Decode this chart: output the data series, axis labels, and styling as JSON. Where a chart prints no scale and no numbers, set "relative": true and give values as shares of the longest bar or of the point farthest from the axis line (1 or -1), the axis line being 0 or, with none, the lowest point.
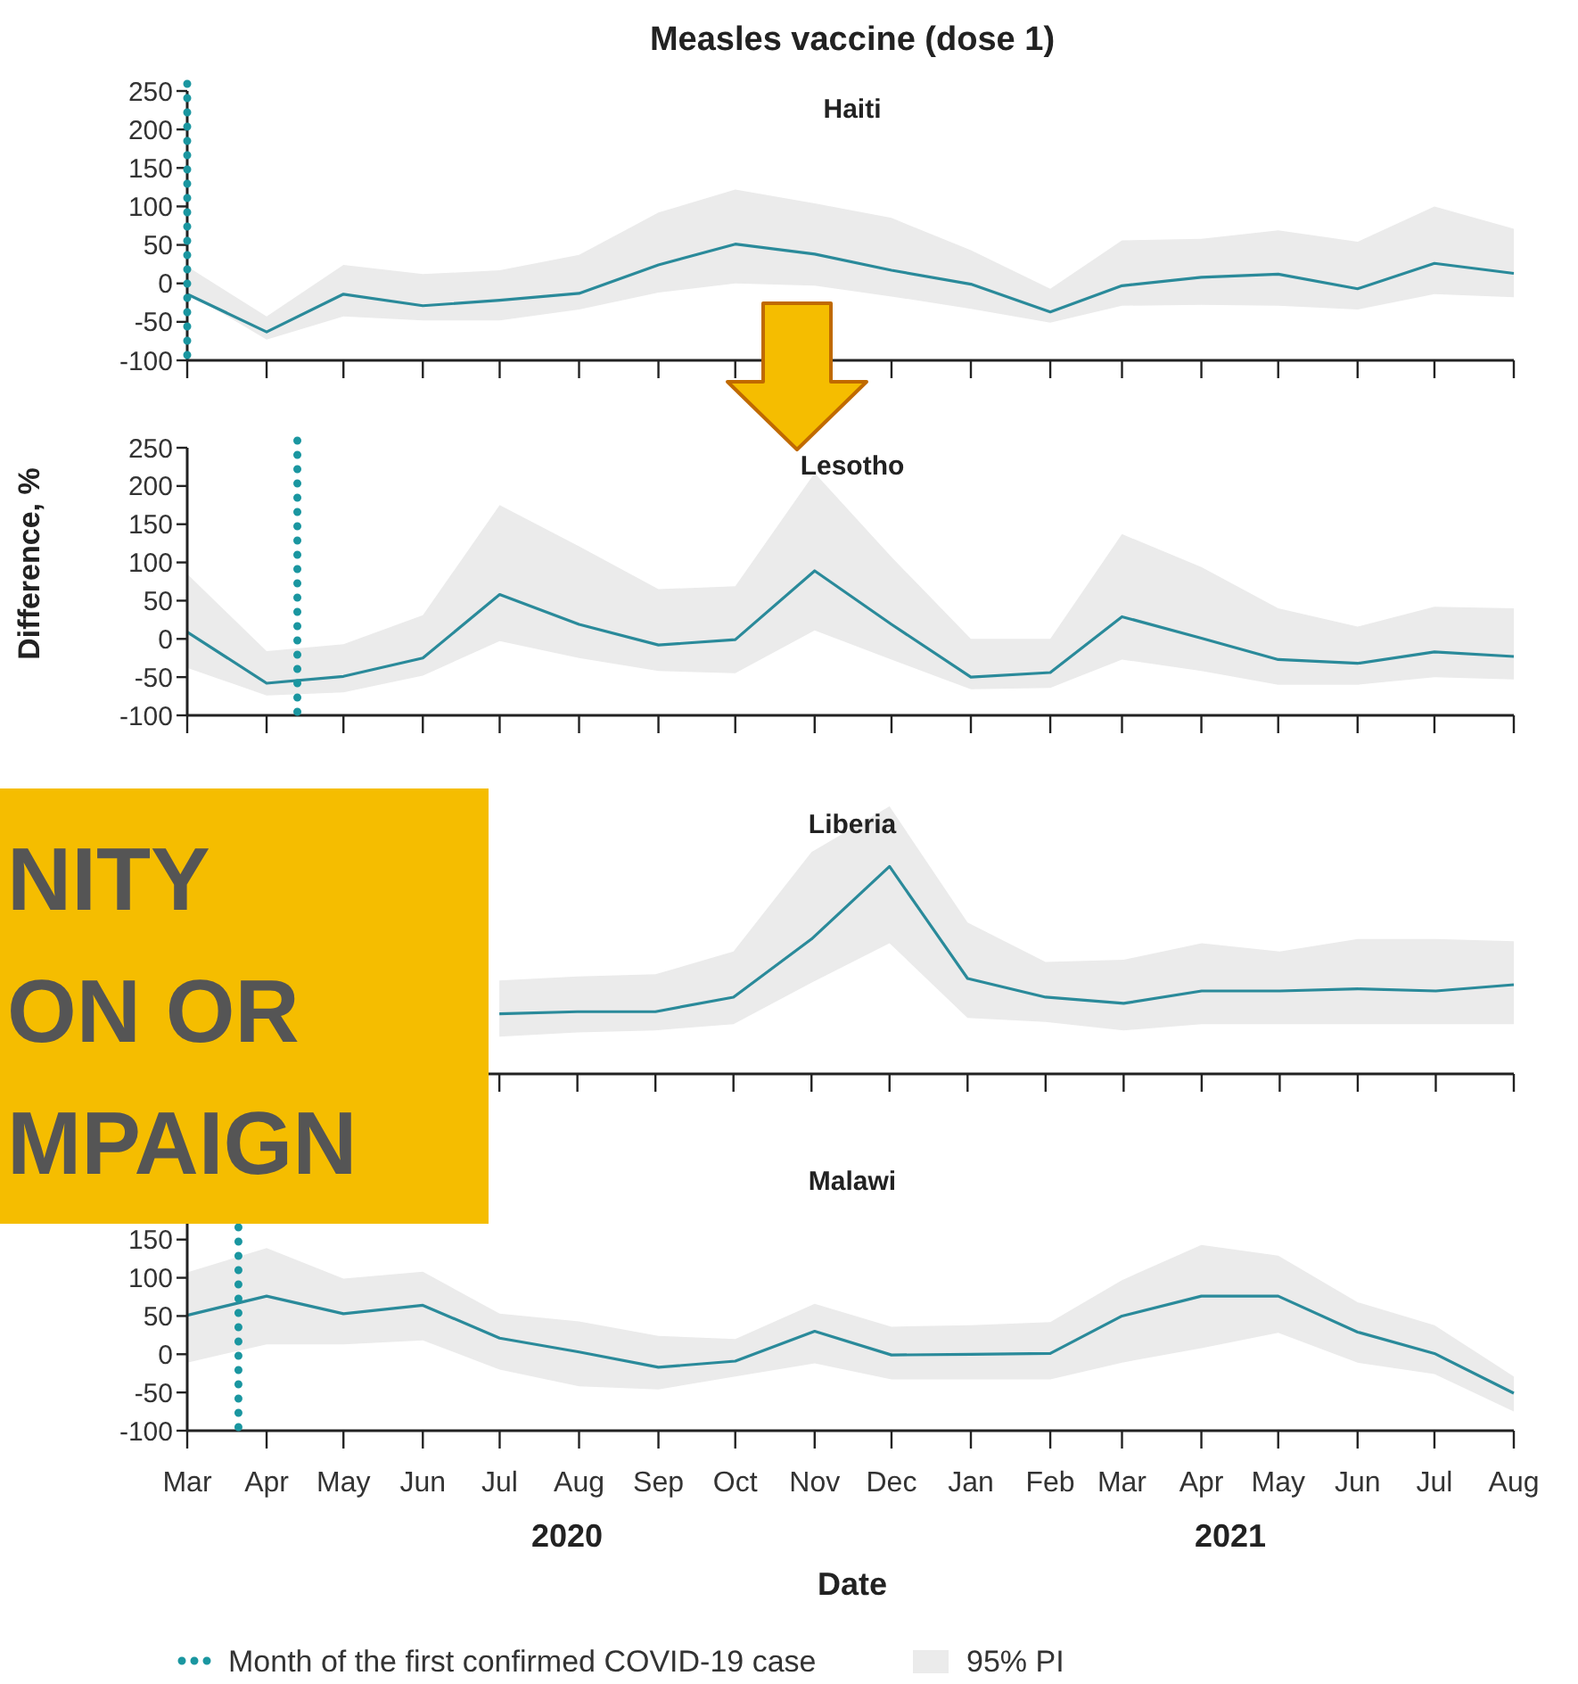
{
  "chart_data": [
    {
      "type": "line",
      "title": "Measles vaccine (dose 1)",
      "subtitle": "Haiti",
      "tick_labels": "y",
      "x": [
        "2020-03",
        "2020-04",
        "2020-05",
        "2020-06",
        "2020-07",
        "2020-08",
        "2020-09",
        "2020-10",
        "2020-11",
        "2020-12",
        "2021-01",
        "2021-02",
        "2021-03",
        "2021-04",
        "2021-05",
        "2021-06",
        "2021-07",
        "2021-08"
      ],
      "xlim": [
        "2020-03",
        "2021-08"
      ],
      "xticks": [
        {
          "value": "2020-03",
          "label": null
        },
        {
          "value": "2020-04",
          "label": null
        },
        {
          "value": "2020-05",
          "label": null
        },
        {
          "value": "2020-06",
          "label": null
        },
        {
          "value": "2020-07",
          "label": null
        },
        {
          "value": "2020-08",
          "label": null
        },
        {
          "value": "2020-09",
          "label": null
        },
        {
          "value": "2020-10",
          "label": null
        },
        {
          "value": "2020-11",
          "label": null
        },
        {
          "value": "2020-12",
          "label": null
        },
        {
          "value": "2021-01",
          "label": null
        },
        {
          "value": "2021-02",
          "label": null
        },
        {
          "value": "2021-03",
          "label": null
        },
        {
          "value": "2021-04",
          "label": null
        },
        {
          "value": "2021-05",
          "label": null
        },
        {
          "value": "2021-06",
          "label": null
        },
        {
          "value": "2021-07",
          "label": null
        },
        {
          "value": "2021-08",
          "label": null
        }
      ],
      "ylim": [
        -100,
        250
      ],
      "yticks": [
        -100,
        -50,
        0,
        50,
        100,
        150,
        200,
        250
      ],
      "series": [
        {
          "color": "#2a8a9a",
          "values": [
            -14,
            -63,
            -14,
            -29,
            -22,
            -13,
            24,
            51,
            38,
            17,
            -1,
            -37,
            -3,
            8,
            12,
            -7,
            26,
            13
          ],
          "lower": [
            -12,
            -73,
            -43,
            -48,
            -48,
            -34,
            -12,
            0,
            -3,
            -17,
            -33,
            -51,
            -29,
            -28,
            -29,
            -34,
            -14,
            -18
          ],
          "upper": [
            22,
            -43,
            24,
            12,
            17,
            37,
            92,
            122,
            104,
            85,
            43,
            -7,
            56,
            58,
            69,
            54,
            100,
            71
          ]
        }
      ],
      "ref_lines": [
        {
          "axis": "x",
          "value": "2020-03-01",
          "color": "#1a96a0",
          "line_style": "dotted"
        }
      ]
    },
    {
      "type": "line",
      "title": "Lesotho",
      "ylabel": "Difference, %",
      "tick_labels": "y",
      "x": [
        "2020-03",
        "2020-04",
        "2020-05",
        "2020-06",
        "2020-07",
        "2020-08",
        "2020-09",
        "2020-10",
        "2020-11",
        "2020-12",
        "2021-01",
        "2021-02",
        "2021-03",
        "2021-04",
        "2021-05",
        "2021-06",
        "2021-07",
        "2021-08"
      ],
      "xlim": [
        "2020-03",
        "2021-08"
      ],
      "xticks": [
        {
          "value": "2020-03",
          "label": null
        },
        {
          "value": "2020-04",
          "label": null
        },
        {
          "value": "2020-05",
          "label": null
        },
        {
          "value": "2020-06",
          "label": null
        },
        {
          "value": "2020-07",
          "label": null
        },
        {
          "value": "2020-08",
          "label": null
        },
        {
          "value": "2020-09",
          "label": null
        },
        {
          "value": "2020-10",
          "label": null
        },
        {
          "value": "2020-11",
          "label": null
        },
        {
          "value": "2020-12",
          "label": null
        },
        {
          "value": "2021-01",
          "label": null
        },
        {
          "value": "2021-02",
          "label": null
        },
        {
          "value": "2021-03",
          "label": null
        },
        {
          "value": "2021-04",
          "label": null
        },
        {
          "value": "2021-05",
          "label": null
        },
        {
          "value": "2021-06",
          "label": null
        },
        {
          "value": "2021-07",
          "label": null
        },
        {
          "value": "2021-08",
          "label": null
        }
      ],
      "ylim": [
        -100,
        250
      ],
      "yticks": [
        -100,
        -50,
        0,
        50,
        100,
        150,
        200,
        250
      ],
      "series": [
        {
          "color": "#2a8a9a",
          "values": [
            9,
            -58,
            -49,
            -25,
            58,
            19,
            -8,
            -1,
            89,
            19,
            -50,
            -44,
            29,
            1,
            -27,
            -32,
            -17,
            -23
          ],
          "lower": [
            -38,
            -74,
            -70,
            -48,
            -3,
            -25,
            -42,
            -45,
            11,
            -27,
            -66,
            -64,
            -27,
            -42,
            -60,
            -60,
            -50,
            -53
          ],
          "upper": [
            85,
            -16,
            -7,
            31,
            175,
            121,
            65,
            69,
            217,
            107,
            0,
            0,
            137,
            94,
            40,
            16,
            42,
            40
          ]
        }
      ],
      "ref_lines": [
        {
          "axis": "x",
          "value": "2020-04-13",
          "color": "#1a96a0",
          "line_style": "dotted"
        }
      ]
    },
    {
      "type": "line",
      "title": "Liberia",
      "relative": true,
      "tick_labels": false,
      "annotations": [
        "NITY",
        "ON OR",
        "MPAIGN"
      ],
      "categories": [
        null,
        null,
        null,
        null,
        null,
        null,
        null,
        null,
        null,
        null,
        null,
        null,
        null,
        null,
        null,
        null,
        null,
        null
      ],
      "series": [
        {
          "color": "#2a8a9a",
          "values": [
            null,
            null,
            null,
            null,
            0.29,
            0.3,
            0.3,
            0.37,
            0.65,
            1,
            0.46,
            0.37,
            0.34,
            0.4,
            0.4,
            0.41,
            0.4,
            0.43
          ],
          "lower": [
            null,
            null,
            null,
            null,
            0.18,
            0.2,
            0.21,
            0.24,
            0.44,
            0.63,
            0.27,
            0.25,
            0.21,
            0.24,
            0.24,
            0.24,
            0.24,
            0.24
          ],
          "upper": [
            null,
            null,
            null,
            null,
            0.45,
            0.47,
            0.48,
            0.59,
            1.07,
            1.29,
            0.73,
            0.54,
            0.55,
            0.63,
            0.59,
            0.65,
            0.65,
            0.64
          ]
        }
      ]
    },
    {
      "type": "line",
      "title": "Malawi",
      "xlabel": "Date",
      "legend": "bottom",
      "annotations": [
        "2020",
        "2021",
        "95% PI"
      ],
      "x": [
        "2020-03",
        "2020-04",
        "2020-05",
        "2020-06",
        "2020-07",
        "2020-08",
        "2020-09",
        "2020-10",
        "2020-11",
        "2020-12",
        "2021-01",
        "2021-02",
        "2021-03",
        "2021-04",
        "2021-05",
        "2021-06",
        "2021-07",
        "2021-08"
      ],
      "xlim": [
        "2020-03",
        "2021-08"
      ],
      "xticks": [
        {
          "value": "2020-03",
          "label": "Mar"
        },
        {
          "value": "2020-04",
          "label": "Apr"
        },
        {
          "value": "2020-05",
          "label": "May"
        },
        {
          "value": "2020-06",
          "label": "Jun"
        },
        {
          "value": "2020-07",
          "label": "Jul"
        },
        {
          "value": "2020-08",
          "label": "Aug"
        },
        {
          "value": "2020-09",
          "label": "Sep"
        },
        {
          "value": "2020-10",
          "label": "Oct"
        },
        {
          "value": "2020-11",
          "label": "Nov"
        },
        {
          "value": "2020-12",
          "label": "Dec"
        },
        {
          "value": "2021-01",
          "label": "Jan"
        },
        {
          "value": "2021-02",
          "label": "Feb"
        },
        {
          "value": "2021-03",
          "label": "Mar"
        },
        {
          "value": "2021-04",
          "label": "Apr"
        },
        {
          "value": "2021-05",
          "label": "May"
        },
        {
          "value": "2021-06",
          "label": "Jun"
        },
        {
          "value": "2021-07",
          "label": "Jul"
        },
        {
          "value": "2021-08",
          "label": "Aug"
        }
      ],
      "ylim": [
        -100,
        250
      ],
      "yticks": [
        -100,
        -50,
        0,
        50,
        100,
        150
      ],
      "series": [
        {
          "color": "#2a8a9a",
          "values": [
            51,
            76,
            53,
            64,
            21,
            3,
            -17,
            -9,
            30,
            -1,
            0,
            1,
            50,
            76,
            76,
            29,
            1,
            -51
          ],
          "lower": [
            -11,
            13,
            13,
            18,
            -20,
            -42,
            -46,
            -29,
            -12,
            -33,
            -33,
            -33,
            -11,
            8,
            28,
            -11,
            -26,
            -75
          ],
          "upper": [
            107,
            139,
            99,
            108,
            53,
            43,
            24,
            20,
            66,
            36,
            38,
            42,
            97,
            143,
            129,
            68,
            38,
            -29
          ]
        }
      ],
      "ref_lines": [
        {
          "axis": "x",
          "value": "2020-03-21",
          "color": "#1a96a0",
          "line_style": "dotted",
          "label": "Month of the first confirmed COVID-19 case"
        }
      ]
    }
  ]
}
